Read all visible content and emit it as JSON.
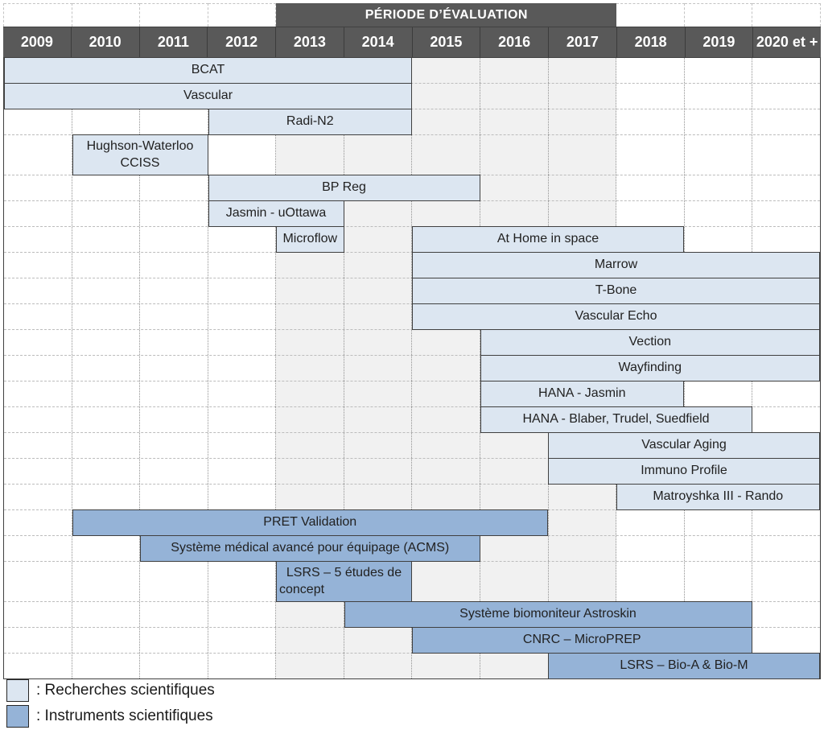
{
  "chart_data": {
    "type": "gantt",
    "evaluation_banner": "PÉRIODE D’ÉVALUATION",
    "first_year_value": 2009,
    "years": [
      "2009",
      "2010",
      "2011",
      "2012",
      "2013",
      "2014",
      "2015",
      "2016",
      "2017",
      "2018",
      "2019",
      "2020 et +"
    ],
    "evaluation_period": {
      "first_year": 2013,
      "last_year": 2017
    },
    "colors": {
      "research": "#dce6f1",
      "instrument": "#95b3d7",
      "header_bg": "#595959",
      "eval_bg": "#f1f1f1"
    },
    "rows": [
      {
        "bars": [
          {
            "label": "BCAT",
            "start": 2009,
            "end": 2014,
            "type": "research"
          }
        ]
      },
      {
        "bars": [
          {
            "label": "Vascular",
            "start": 2009,
            "end": 2014,
            "type": "research"
          }
        ]
      },
      {
        "bars": [
          {
            "label": "Radi-N2",
            "start": 2012,
            "end": 2014,
            "type": "research"
          }
        ]
      },
      {
        "tall": true,
        "bars": [
          {
            "label": "Hughson-Waterloo CCISS",
            "lines": [
              "Hughson-Waterloo",
              "CCISS"
            ],
            "start": 2010,
            "end": 2011,
            "type": "research"
          }
        ]
      },
      {
        "bars": [
          {
            "label": "BP Reg",
            "start": 2012,
            "end": 2015,
            "type": "research"
          }
        ]
      },
      {
        "bars": [
          {
            "label": "Jasmin - uOttawa",
            "start": 2012,
            "end": 2013,
            "type": "research"
          }
        ]
      },
      {
        "bars": [
          {
            "label": "Microflow",
            "start": 2013,
            "end": 2013,
            "type": "research"
          },
          {
            "label": "At Home in space",
            "start": 2015,
            "end": 2018,
            "type": "research"
          }
        ]
      },
      {
        "bars": [
          {
            "label": "Marrow",
            "start": 2015,
            "end": 2020,
            "type": "research"
          }
        ]
      },
      {
        "bars": [
          {
            "label": "T-Bone",
            "start": 2015,
            "end": 2020,
            "type": "research"
          }
        ]
      },
      {
        "bars": [
          {
            "label": "Vascular Echo",
            "start": 2015,
            "end": 2020,
            "type": "research"
          }
        ]
      },
      {
        "bars": [
          {
            "label": "Vection",
            "start": 2016,
            "end": 2020,
            "type": "research"
          }
        ]
      },
      {
        "bars": [
          {
            "label": "Wayfinding",
            "start": 2016,
            "end": 2020,
            "type": "research"
          }
        ]
      },
      {
        "bars": [
          {
            "label": "HANA - Jasmin",
            "start": 2016,
            "end": 2018,
            "type": "research"
          }
        ]
      },
      {
        "bars": [
          {
            "label": "HANA - Blaber, Trudel, Suedfield",
            "start": 2016,
            "end": 2019,
            "type": "research"
          }
        ]
      },
      {
        "bars": [
          {
            "label": "Vascular Aging",
            "start": 2017,
            "end": 2020,
            "type": "research"
          }
        ]
      },
      {
        "bars": [
          {
            "label": "Immuno Profile",
            "start": 2017,
            "end": 2020,
            "type": "research"
          }
        ]
      },
      {
        "bars": [
          {
            "label": "Matroyshka III - Rando",
            "start": 2018,
            "end": 2020,
            "type": "research"
          }
        ]
      },
      {
        "bars": [
          {
            "label": "PRET Validation",
            "start": 2010,
            "end": 2016,
            "type": "instrument"
          }
        ]
      },
      {
        "bars": [
          {
            "label": "Système médical avancé pour équipage (ACMS)",
            "start": 2011,
            "end": 2015,
            "type": "instrument"
          }
        ]
      },
      {
        "tall": true,
        "bars": [
          {
            "label": "LSRS – 5 études de concept",
            "lines": [
              "LSRS – 5 études de",
              "concept"
            ],
            "second_line_left": true,
            "start": 2013,
            "end": 2014,
            "type": "instrument"
          }
        ]
      },
      {
        "bars": [
          {
            "label": "Système biomoniteur Astroskin",
            "start": 2014,
            "end": 2019,
            "type": "instrument"
          }
        ]
      },
      {
        "bars": [
          {
            "label": "CNRC – MicroPREP",
            "start": 2015,
            "end": 2019,
            "type": "instrument"
          }
        ]
      },
      {
        "bars": [
          {
            "label": "LSRS – Bio-A & Bio-M",
            "start": 2017,
            "end": 2020,
            "type": "instrument"
          }
        ]
      }
    ],
    "legend": [
      {
        "type": "research",
        "label": ": Recherches scientifiques"
      },
      {
        "type": "instrument",
        "label": ": Instruments scientifiques"
      }
    ]
  }
}
